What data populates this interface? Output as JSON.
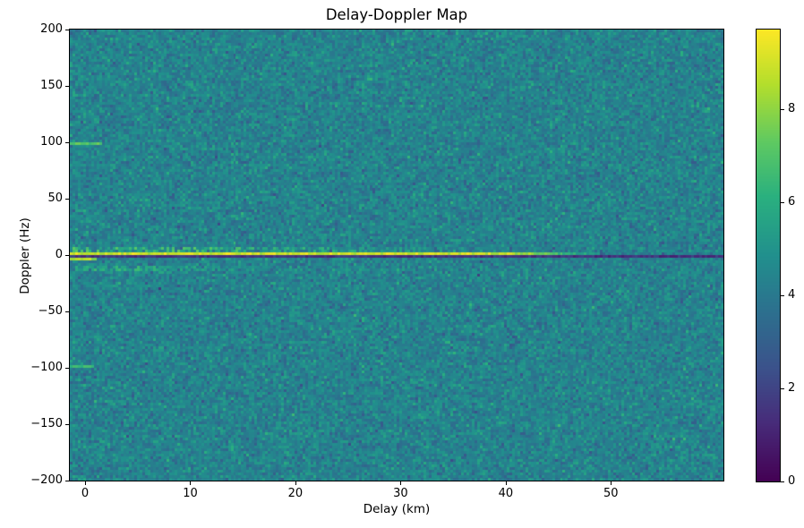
{
  "chart_data": {
    "type": "heatmap",
    "title": "Delay-Doppler Map",
    "xlabel": "Delay (km)",
    "ylabel": "Doppler (Hz)",
    "x_range": [
      -1.45,
      60.7
    ],
    "y_range": [
      -200,
      200
    ],
    "x_ticks": [
      0,
      10,
      20,
      30,
      40,
      50
    ],
    "y_ticks": [
      200,
      150,
      100,
      50,
      0,
      -50,
      -100,
      -150,
      -200
    ],
    "grid": false,
    "legend": "none",
    "colormap": "viridis",
    "color_range": [
      0,
      9.7
    ],
    "colorbar_ticks": [
      0,
      2,
      4,
      6,
      8
    ],
    "noise_floor": {
      "mean": 4.35,
      "std": 0.6,
      "seed": 42
    },
    "resolution": {
      "rows": 168,
      "cols": 244
    },
    "features": [
      {
        "label": "zero-doppler bright ridge",
        "doppler_hz": 1.2,
        "thickness_hz": 2.3,
        "delay_km": [
          -1.45,
          49.0
        ],
        "value": 8.9,
        "jitter": 0.8,
        "density": 1.0,
        "mode": "max",
        "fade_out": [
          40.0,
          50.0
        ]
      },
      {
        "label": "zero-doppler dark notch line",
        "doppler_hz": -1.2,
        "thickness_hz": 2.3,
        "delay_km": [
          -1.45,
          60.7
        ],
        "value": 1.5,
        "jitter": 0.6,
        "density": 1.0,
        "mode": "set"
      },
      {
        "label": "bright dash below notch at origin",
        "doppler_hz": -3.6,
        "thickness_hz": 2.3,
        "delay_km": [
          -1.45,
          1.0
        ],
        "value": 8.2,
        "jitter": 0.8,
        "density": 1.0,
        "mode": "max"
      },
      {
        "label": "mottled sidelobe band above ridge",
        "doppler_hz": 4.8,
        "thickness_hz": 4.7,
        "delay_km": [
          -1.45,
          34.0
        ],
        "value": 6.4,
        "jitter": 1.0,
        "density": 0.55,
        "mode": "max",
        "fade_out": [
          10.0,
          36.0
        ]
      },
      {
        "label": "+100 Hz ambiguity dash",
        "doppler_hz": 98.8,
        "thickness_hz": 2.3,
        "delay_km": [
          -1.45,
          1.6
        ],
        "value": 7.0,
        "jitter": 0.6,
        "density": 1.0,
        "mode": "max"
      },
      {
        "label": "-100 Hz ambiguity dash",
        "doppler_hz": -98.8,
        "thickness_hz": 2.3,
        "delay_km": [
          -1.45,
          0.8
        ],
        "value": 6.4,
        "jitter": 0.5,
        "density": 1.0,
        "mode": "max"
      },
      {
        "label": "-13 Hz mottled band",
        "doppler_hz": -12.0,
        "thickness_hz": 4.8,
        "delay_km": [
          -1.45,
          18.0
        ],
        "value": 5.8,
        "jitter": 0.8,
        "density": 0.6,
        "mode": "max",
        "fade_out": [
          6.0,
          19.0
        ]
      }
    ]
  }
}
